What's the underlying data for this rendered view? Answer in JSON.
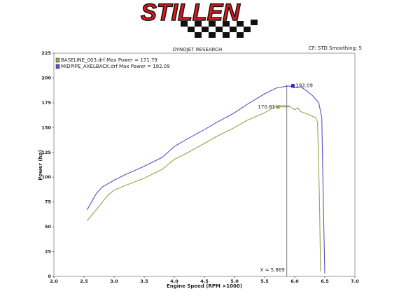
{
  "logo_text": "STILLEN",
  "chart_data": {
    "type": "line",
    "title": "DYNOJET RESEARCH",
    "subtitle": "CF: STD  Smoothing: 5",
    "x_label": "Engine Speed (RPM ×1000)",
    "y_label": "Power (hp)",
    "xlim": [
      2,
      7
    ],
    "ylim": [
      0,
      225
    ],
    "xticks": [
      {
        "value": 2,
        "label": "2.0"
      },
      2.5,
      {
        "value": 3,
        "label": "3.0"
      },
      3.5,
      {
        "value": 4,
        "label": "4.0"
      },
      4.5,
      {
        "value": 5,
        "label": "5.0"
      },
      5.5,
      {
        "value": 6,
        "label": "6.0"
      },
      6.5,
      {
        "value": 7,
        "label": "7.0"
      }
    ],
    "yticks": [
      0,
      25,
      50,
      75,
      100,
      125,
      150,
      175,
      200,
      225
    ],
    "series": [
      {
        "name": "BASELINE_003.drf Max Power = 171.79",
        "color": "#9ba04c",
        "x": [
          2.55,
          2.7,
          2.9,
          3.0,
          3.2,
          3.5,
          3.8,
          4.0,
          4.2,
          4.5,
          4.7,
          5.0,
          5.2,
          5.5,
          5.7,
          5.9,
          6.0,
          6.05,
          6.1,
          6.2,
          6.35,
          6.38,
          6.41,
          6.43
        ],
        "values": [
          56,
          67,
          82,
          87,
          92,
          99,
          108,
          118,
          124,
          134,
          141,
          150,
          157,
          165,
          172,
          172,
          168,
          170,
          166,
          164,
          160,
          155,
          80,
          5
        ]
      },
      {
        "name": "MIDPIPE_AXELBACK.drf Max Power = 192.09",
        "color": "#5a50c8",
        "x": [
          2.55,
          2.7,
          2.8,
          3.0,
          3.2,
          3.5,
          3.8,
          4.0,
          4.2,
          4.5,
          4.7,
          5.0,
          5.2,
          5.5,
          5.7,
          5.9,
          6.0,
          6.1,
          6.2,
          6.3,
          6.4,
          6.45,
          6.48,
          6.5
        ],
        "values": [
          67,
          83,
          90,
          97,
          103,
          111,
          120,
          131,
          138,
          148,
          155,
          165,
          173,
          184,
          190,
          192,
          190,
          191,
          187,
          182,
          175,
          160,
          60,
          3
        ]
      }
    ],
    "annotations": [
      {
        "x": 5.72,
        "y": 170.81,
        "color": "#9ba04c"
      },
      {
        "x": 5.97,
        "y": 192.09,
        "color": "#2020e0"
      }
    ],
    "cursor": {
      "x": 5.869,
      "label": "X = 5.869"
    }
  }
}
